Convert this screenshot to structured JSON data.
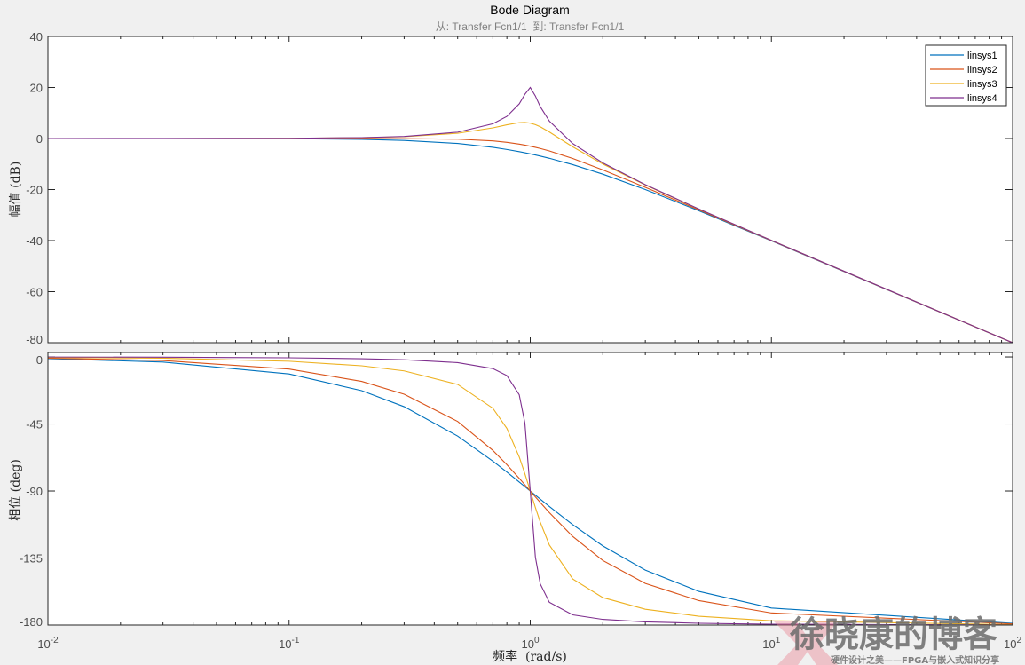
{
  "chart_data": [
    {
      "type": "line",
      "title": "Bode Diagram",
      "subtitle": "从: Transfer Fcn1/1  到: Transfer Fcn1/1",
      "xlabel": "频率  (rad/s)",
      "ylabel": "幅值 (dB)",
      "xscale": "log",
      "xlim": [
        0.01,
        100
      ],
      "ylim": [
        -80,
        40
      ],
      "yticks": [
        "40",
        "20",
        "0",
        "-20",
        "-40",
        "-60",
        "-80"
      ],
      "grid": false,
      "legend_position": "top-right",
      "x": [
        0.01,
        0.03,
        0.1,
        0.2,
        0.3,
        0.5,
        0.7,
        0.8,
        0.9,
        0.95,
        1,
        1.05,
        1.1,
        1.2,
        1.5,
        2,
        3,
        5,
        10,
        100
      ],
      "series": [
        {
          "name": "linsys1",
          "color": "#0072BD",
          "values": [
            0,
            -0.01,
            -0.09,
            -0.34,
            -0.75,
            -1.94,
            -3.46,
            -4.3,
            -5.15,
            -5.59,
            -6.02,
            -6.45,
            -6.89,
            -7.75,
            -10.24,
            -13.98,
            -20.0,
            -28.3,
            -40.09,
            -80.0
          ]
        },
        {
          "name": "linsys2",
          "color": "#D95319",
          "values": [
            0,
            0,
            0,
            -0.01,
            -0.04,
            -0.26,
            -0.93,
            -1.49,
            -2.19,
            -2.59,
            -3.01,
            -3.45,
            -3.92,
            -4.88,
            -7.83,
            -12.3,
            -19.14,
            -27.97,
            -40.0,
            -80.0
          ]
        },
        {
          "name": "linsys3",
          "color": "#EDB120",
          "values": [
            0,
            0,
            0.08,
            0.31,
            0.7,
            2.04,
            4.17,
            5.38,
            6.22,
            6.29,
            6.02,
            5.43,
            4.6,
            2.57,
            -3.27,
            -10.0,
            -18.21,
            -27.65,
            -39.92,
            -80.0
          ]
        },
        {
          "name": "linsys4",
          "color": "#7E2F8E",
          "values": [
            0,
            0.01,
            0.09,
            0.35,
            0.81,
            2.48,
            5.77,
            8.66,
            13.55,
            17.32,
            20.0,
            16.67,
            12.5,
            6.82,
            -2.0,
            -9.56,
            -18.07,
            -27.61,
            -39.91,
            -80.0
          ]
        }
      ]
    },
    {
      "type": "line",
      "xlabel": "频率  (rad/s)",
      "ylabel": "相位 (deg)",
      "xscale": "log",
      "xlim": [
        0.01,
        100
      ],
      "ylim": [
        -180,
        3
      ],
      "yticks": [
        "0",
        "-45",
        "-90",
        "-135",
        "-180"
      ],
      "xticks": [
        "10",
        "10",
        "10",
        "10",
        "10"
      ],
      "xtick_exponents": [
        "-2",
        "-1",
        "0",
        "1",
        "2"
      ],
      "grid": false,
      "x": [
        0.01,
        0.03,
        0.1,
        0.2,
        0.3,
        0.5,
        0.7,
        0.8,
        0.9,
        0.95,
        1,
        1.05,
        1.1,
        1.2,
        1.5,
        2,
        3,
        5,
        10,
        100
      ],
      "series": [
        {
          "name": "linsys1",
          "color": "#0072BD",
          "values": [
            -1.15,
            -3.44,
            -11.42,
            -22.62,
            -33.4,
            -53.13,
            -70.0,
            -77.32,
            -83.97,
            -87.06,
            -90,
            -92.79,
            -95.45,
            -100.39,
            -112.62,
            -126.87,
            -143.13,
            -157.38,
            -168.58,
            -178.85
          ]
        },
        {
          "name": "linsys2",
          "color": "#D95319",
          "values": [
            -0.81,
            -2.43,
            -8.13,
            -16.41,
            -25.0,
            -43.31,
            -62.75,
            -72.35,
            -81.51,
            -85.85,
            -90,
            -93.95,
            -97.69,
            -104.54,
            -120.51,
            -136.69,
            -152.06,
            -163.59,
            -171.87,
            -179.19
          ]
        },
        {
          "name": "linsys3",
          "color": "#EDB120",
          "values": [
            -0.29,
            -0.86,
            -2.89,
            -5.95,
            -9.36,
            -18.43,
            -34.46,
            -48.01,
            -67.11,
            -78.4,
            -90,
            -101.05,
            -110.9,
            -126.25,
            -149.04,
            -161.57,
            -169.38,
            -174.05,
            -177.11,
            -179.71
          ]
        },
        {
          "name": "linsys4",
          "color": "#7E2F8E",
          "values": [
            -0.06,
            -0.17,
            -0.58,
            -1.19,
            -1.89,
            -3.81,
            -7.82,
            -12.53,
            -25.35,
            -44.26,
            -90,
            -134.31,
            -152.35,
            -164.74,
            -173.16,
            -176.19,
            -177.85,
            -178.81,
            -179.42,
            -179.94
          ]
        }
      ]
    }
  ],
  "watermark": {
    "name": "徐晓康的博客",
    "tagline": "硬件设计之美——FPGA与嵌入式知识分享"
  }
}
